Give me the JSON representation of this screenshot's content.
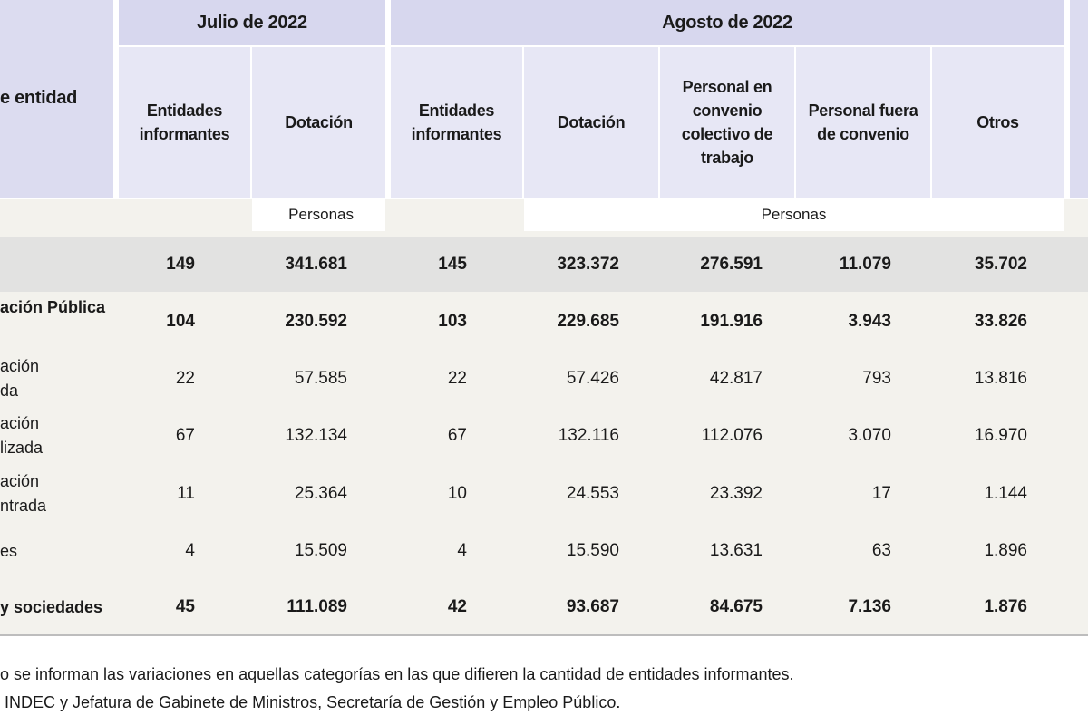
{
  "header": {
    "row_header": "e entidad",
    "groups": [
      "Julio de 2022",
      "Agosto de 2022"
    ],
    "columns": [
      "Entidades informantes",
      "Dotación",
      "Entidades informantes",
      "Dotación",
      "Personal en convenio colectivo de trabajo",
      "Personal fuera de convenio",
      "Otros"
    ],
    "units": [
      "Personas",
      "Personas"
    ]
  },
  "table": {
    "rows": [
      {
        "cells": [
          "149",
          "341.681",
          "145",
          "323.372",
          "276.591",
          "11.079",
          "35.702"
        ],
        "bold": true
      },
      {
        "label": [
          "ación Pública"
        ],
        "cells": [
          "104",
          "230.592",
          "103",
          "229.685",
          "191.916",
          "3.943",
          "33.826"
        ],
        "bold": true
      },
      {
        "label": [
          "ación",
          "da"
        ],
        "cells": [
          "22",
          "57.585",
          "22",
          "57.426",
          "42.817",
          "793",
          "13.816"
        ]
      },
      {
        "label": [
          "ación",
          "lizada"
        ],
        "cells": [
          "67",
          "132.134",
          "67",
          "132.116",
          "112.076",
          "3.070",
          "16.970"
        ]
      },
      {
        "label": [
          "ación",
          "ntrada"
        ],
        "cells": [
          "11",
          "25.364",
          "10",
          "24.553",
          "23.392",
          "17",
          "1.144"
        ]
      },
      {
        "label": [
          "es"
        ],
        "cells": [
          "4",
          "15.509",
          "4",
          "15.590",
          "13.631",
          "63",
          "1.896"
        ]
      },
      {
        "label": [
          "y sociedades"
        ],
        "cells": [
          "45",
          "111.089",
          "42",
          "93.687",
          "84.675",
          "7.136",
          "1.876"
        ],
        "bold": true
      }
    ]
  },
  "notes": [
    "o se informan las variaciones en aquellas categorías en las que difieren la cantidad de entidades informantes.",
    " INDEC y Jefatura de Gabinete de Ministros, Secretaría de Gestión y Empleo Público."
  ]
}
